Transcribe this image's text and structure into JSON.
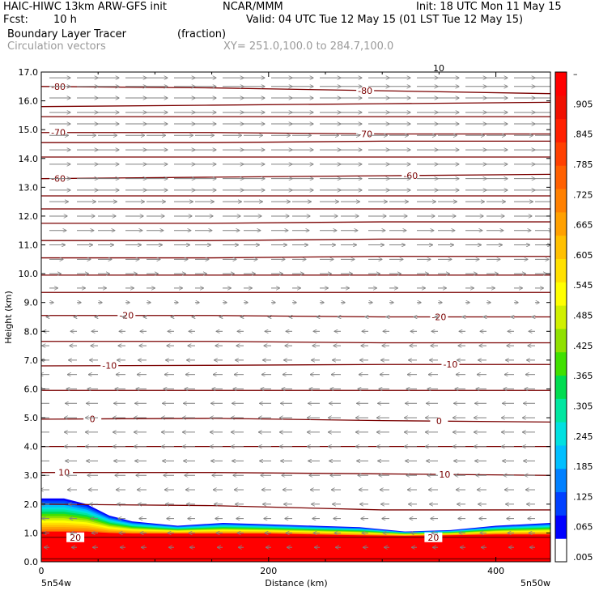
{
  "header": {
    "title": "HAIC-HIWC 13km ARW-GFS init",
    "org": "NCAR/MMM",
    "init": "Init: 18 UTC Mon 11 May 15",
    "fcst_label": "Fcst:",
    "fcst_value": "10 h",
    "valid": "Valid: 04 UTC Tue 12 May 15 (01 LST Tue 12 May 15)",
    "field": "Boundary Layer Tracer",
    "field_units": "(fraction)",
    "overlay": "Circulation vectors",
    "xy": "XY= 251.0,100.0 to 284.7,100.0"
  },
  "chart_data": {
    "type": "heatmap",
    "xlabel": "Distance (km)",
    "ylabel": "Height (km)",
    "xlim": [
      0,
      448
    ],
    "ylim": [
      0,
      17
    ],
    "x_ticks": [
      0,
      200,
      400
    ],
    "y_ticks": [
      "0.0",
      "1.0",
      "2.0",
      "3.0",
      "4.0",
      "5.0",
      "6.0",
      "7.0",
      "8.0",
      "9.0",
      "10.0",
      "11.0",
      "12.0",
      "13.0",
      "14.0",
      "15.0",
      "16.0",
      "17.0"
    ],
    "x_end_labels": {
      "left": "5n54w",
      "right": "5n50w"
    },
    "colorbar": {
      "labels": [
        ".005",
        ".065",
        ".125",
        ".185",
        ".245",
        ".305",
        ".365",
        ".425",
        ".485",
        ".545",
        ".605",
        ".665",
        ".725",
        ".785",
        ".845",
        ".905",
        "–"
      ],
      "colors": [
        "#ffffff",
        "#0000ff",
        "#0040ff",
        "#0080ff",
        "#00bfff",
        "#00e0e0",
        "#00e6a0",
        "#00dc50",
        "#40e000",
        "#90e000",
        "#d0f000",
        "#ffff00",
        "#ffe000",
        "#ffc000",
        "#ffa000",
        "#ff8000",
        "#ff6000",
        "#ff4000",
        "#ff2000",
        "#f01000",
        "#ff0000"
      ]
    },
    "tracer_profile": {
      "x": [
        0,
        20,
        40,
        60,
        80,
        120,
        160,
        200,
        240,
        280,
        320,
        360,
        400,
        448
      ],
      "top": [
        2.2,
        2.2,
        2.0,
        1.6,
        1.4,
        1.25,
        1.35,
        1.3,
        1.25,
        1.2,
        1.05,
        1.1,
        1.25,
        1.35
      ],
      "red_top": [
        1.05,
        1.05,
        1.05,
        1.0,
        0.98,
        0.98,
        0.98,
        0.98,
        0.95,
        0.92,
        0.9,
        0.92,
        0.95,
        0.95
      ]
    },
    "temperature_contours": [
      {
        "z": [
          0.1,
          0.1,
          0.1,
          0.1
        ],
        "label": ""
      },
      {
        "z": [
          0.85,
          0.85,
          0.85,
          0.85
        ],
        "label": "20",
        "label_x": [
          30,
          345
        ]
      },
      {
        "z": [
          2.0,
          1.95,
          1.8,
          1.8
        ],
        "label": ""
      },
      {
        "z": [
          3.1,
          3.1,
          3.05,
          3.0
        ],
        "label": "10",
        "label_x": [
          20,
          355
        ]
      },
      {
        "z": [
          4.0,
          4.0,
          4.0,
          4.0
        ],
        "label": ""
      },
      {
        "z": [
          4.95,
          4.98,
          4.9,
          4.85
        ],
        "label": "0",
        "label_x": [
          45,
          350
        ]
      },
      {
        "z": [
          5.95,
          5.95,
          5.95,
          5.95
        ],
        "label": ""
      },
      {
        "z": [
          6.8,
          6.82,
          6.85,
          6.85
        ],
        "label": "-10",
        "label_x": [
          60,
          360
        ]
      },
      {
        "z": [
          7.65,
          7.65,
          7.6,
          7.6
        ],
        "label": ""
      },
      {
        "z": [
          8.55,
          8.55,
          8.5,
          8.5
        ],
        "label": "-20",
        "label_x": [
          75,
          350
        ]
      },
      {
        "z": [
          9.35,
          9.35,
          9.35,
          9.35
        ],
        "label": ""
      },
      {
        "z": [
          9.95,
          9.95,
          9.95,
          9.95
        ],
        "label": ""
      },
      {
        "z": [
          10.55,
          10.55,
          10.6,
          10.6
        ],
        "label": ""
      },
      {
        "z": [
          11.15,
          11.15,
          11.2,
          11.2
        ],
        "label": ""
      },
      {
        "z": [
          11.75,
          11.75,
          11.8,
          11.8
        ],
        "label": ""
      },
      {
        "z": [
          12.25,
          12.25,
          12.25,
          12.25
        ],
        "label": ""
      },
      {
        "z": [
          12.7,
          12.7,
          12.7,
          12.7
        ],
        "label": ""
      },
      {
        "z": [
          13.3,
          13.35,
          13.4,
          13.45
        ],
        "label": "-60",
        "label_x": [
          15,
          325
        ]
      },
      {
        "z": [
          14.05,
          14.05,
          14.05,
          14.05
        ],
        "label": ""
      },
      {
        "z": [
          14.55,
          14.55,
          14.6,
          14.6
        ],
        "label": ""
      },
      {
        "z": [
          14.9,
          14.9,
          14.85,
          14.85
        ],
        "label": "-70",
        "label_x": [
          15,
          285
        ]
      },
      {
        "z": [
          15.45,
          15.45,
          15.45,
          15.45
        ],
        "label": ""
      },
      {
        "z": [
          15.8,
          15.85,
          15.9,
          15.95
        ],
        "label": ""
      },
      {
        "z": [
          16.5,
          16.45,
          16.35,
          16.25
        ],
        "label": "-80",
        "label_x": [
          15,
          285
        ]
      }
    ],
    "wind_rows": [
      {
        "z": 16.8,
        "u": 1.0
      },
      {
        "z": 16.5,
        "u": 1.0
      },
      {
        "z": 16.1,
        "u": 1.0
      },
      {
        "z": 15.6,
        "u": 1.0
      },
      {
        "z": 15.2,
        "u": 1.0
      },
      {
        "z": 14.8,
        "u": 0.9
      },
      {
        "z": 14.3,
        "u": 1.0
      },
      {
        "z": 13.8,
        "u": 1.0
      },
      {
        "z": 13.3,
        "u": 1.0
      },
      {
        "z": 12.9,
        "u": 1.0
      },
      {
        "z": 12.5,
        "u": 0.9
      },
      {
        "z": 12.0,
        "u": 0.85
      },
      {
        "z": 11.5,
        "u": 0.8
      },
      {
        "z": 11.0,
        "u": 0.75
      },
      {
        "z": 10.5,
        "u": 0.65
      },
      {
        "z": 10.0,
        "u": 0.55
      },
      {
        "z": 9.5,
        "u": 0.4
      },
      {
        "z": 9.0,
        "u": 0.2
      },
      {
        "z": 8.5,
        "u": -0.15
      },
      {
        "z": 8.0,
        "u": -0.3
      },
      {
        "z": 7.5,
        "u": -0.35
      },
      {
        "z": 7.0,
        "u": -0.4
      },
      {
        "z": 6.5,
        "u": -0.45
      },
      {
        "z": 6.0,
        "u": -0.5
      },
      {
        "z": 5.5,
        "u": -0.55
      },
      {
        "z": 5.0,
        "u": -0.6
      },
      {
        "z": 4.5,
        "u": -0.6
      },
      {
        "z": 4.0,
        "u": -0.6
      },
      {
        "z": 3.5,
        "u": -0.55
      },
      {
        "z": 3.0,
        "u": -0.5
      },
      {
        "z": 2.5,
        "u": -0.45
      },
      {
        "z": 2.0,
        "u": -0.4
      },
      {
        "z": 1.5,
        "u": -0.35
      },
      {
        "z": 1.0,
        "u": -0.3
      },
      {
        "z": 0.5,
        "u": -0.25
      }
    ],
    "vector_legend": "10"
  }
}
